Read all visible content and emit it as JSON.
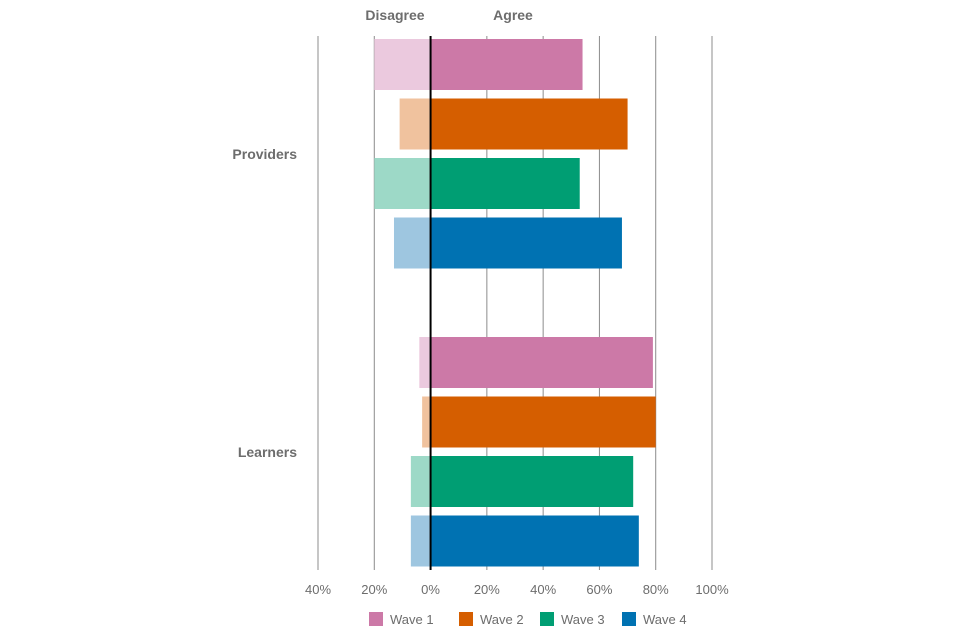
{
  "chart_data": {
    "type": "bar",
    "orientation": "horizontal-diverging",
    "header_left": "Disagree",
    "header_right": "Agree",
    "categories": [
      "Providers",
      "Learners"
    ],
    "series": [
      {
        "name": "Wave 1",
        "agree": [
          54,
          79
        ],
        "disagree": [
          20,
          4
        ],
        "color": "#cc79a7",
        "light_color": "#ebc9de"
      },
      {
        "name": "Wave 2",
        "agree": [
          70,
          80
        ],
        "disagree": [
          11,
          3
        ],
        "color": "#d55e00",
        "light_color": "#f0c29e"
      },
      {
        "name": "Wave 3",
        "agree": [
          53,
          72
        ],
        "disagree": [
          20,
          7
        ],
        "color": "#009e73",
        "light_color": "#9dd9c7"
      },
      {
        "name": "Wave 4",
        "agree": [
          68,
          74
        ],
        "disagree": [
          13,
          7
        ],
        "color": "#0072b2",
        "light_color": "#9ec6e0"
      }
    ],
    "x_ticks": [
      -40,
      -20,
      0,
      20,
      40,
      60,
      80,
      100
    ],
    "x_tick_labels": [
      "40%",
      "20%",
      "0%",
      "20%",
      "40%",
      "60%",
      "80%",
      "100%"
    ],
    "xlim": [
      -40,
      100
    ],
    "grid": true,
    "legend_position": "bottom"
  }
}
